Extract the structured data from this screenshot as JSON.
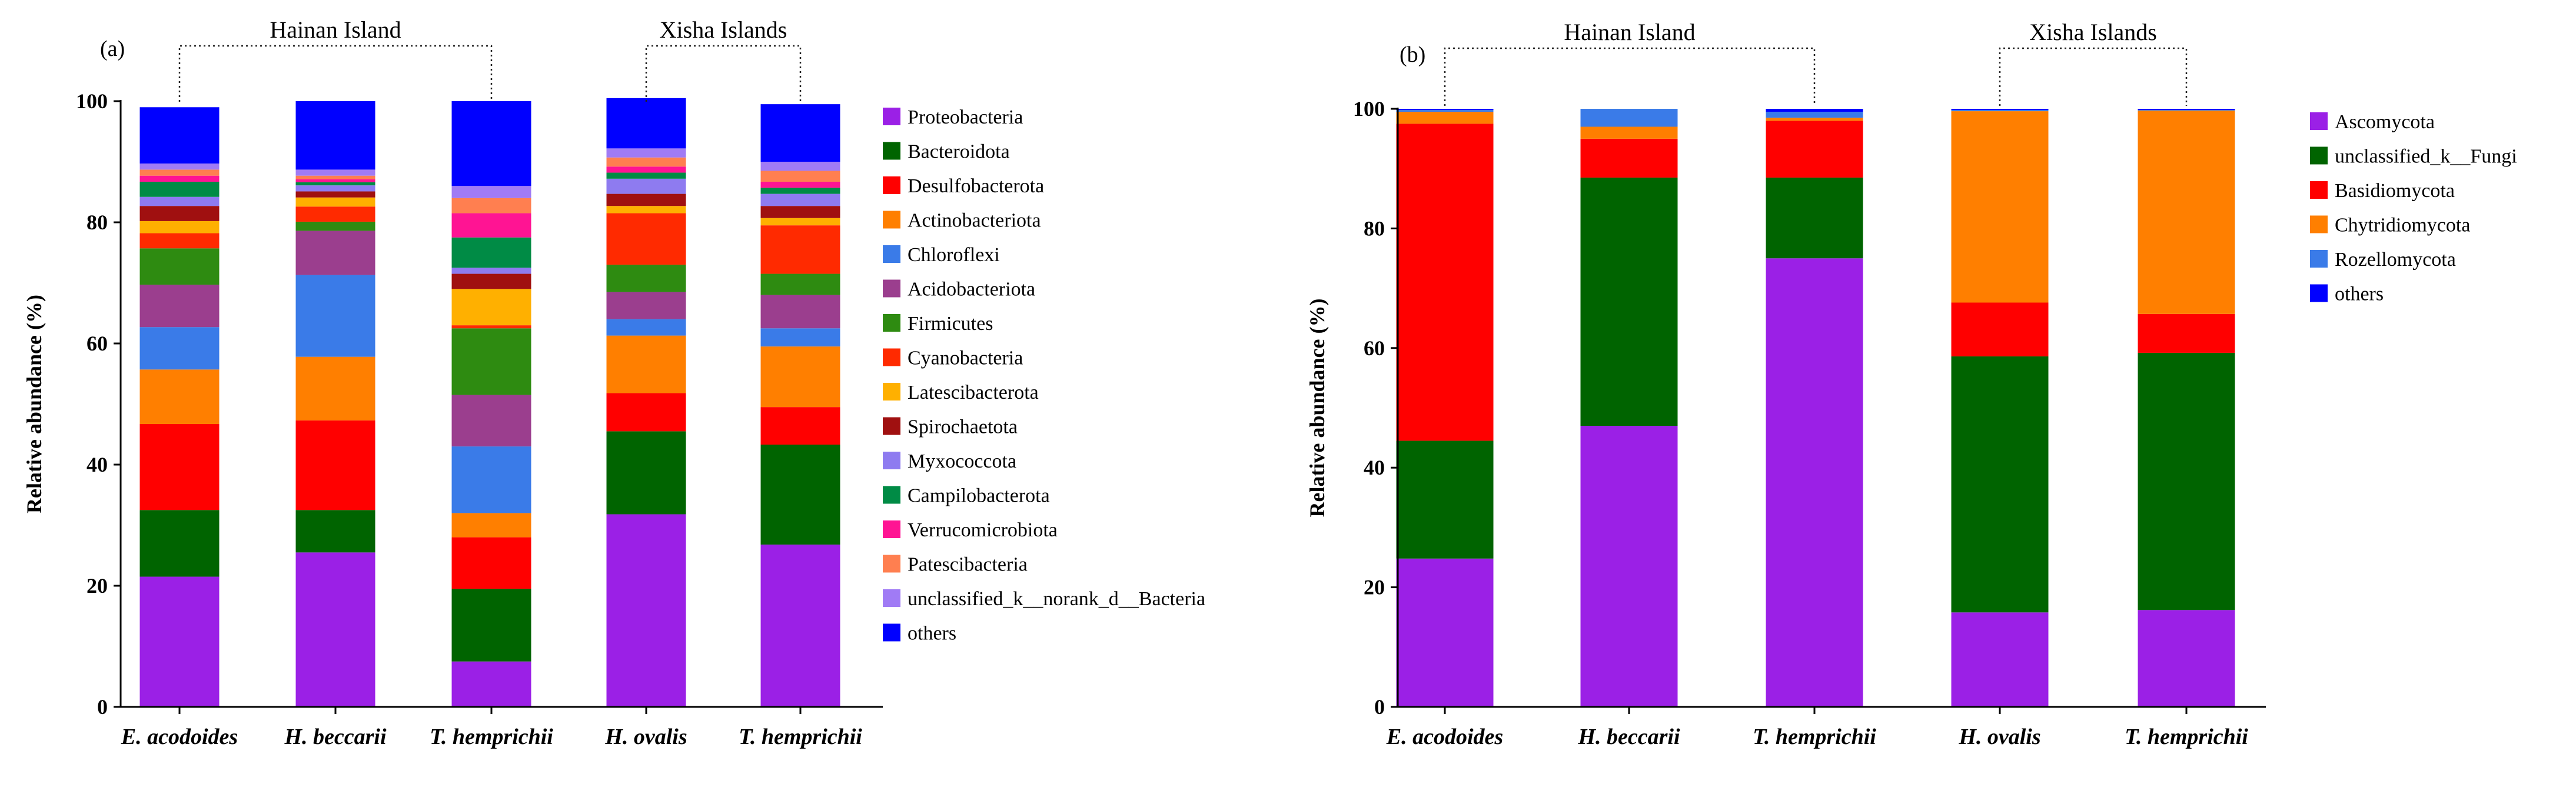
{
  "chart_data": [
    {
      "type": "bar",
      "stacked": true,
      "panel_label": "(a)",
      "ylabel": "Relative abundance (%)",
      "ylim": [
        0,
        100
      ],
      "yticks": [
        0,
        20,
        40,
        60,
        80,
        100
      ],
      "categories": [
        "E. acodoides",
        "H. beccarii",
        "T. hemprichii",
        "H. ovalis",
        "T. hemprichii"
      ],
      "groups": [
        {
          "label": "Hainan Island",
          "members": [
            0,
            2
          ]
        },
        {
          "label": "Xisha Islands",
          "members": [
            3,
            4
          ]
        }
      ],
      "series": [
        {
          "name": "Proteobacteria",
          "color": "#9B20E6",
          "values": [
            21.5,
            25.5,
            7.5,
            31.8,
            26.8
          ]
        },
        {
          "name": "Bacteroidota",
          "color": "#006400",
          "values": [
            11.0,
            7.0,
            12.0,
            13.7,
            16.5
          ]
        },
        {
          "name": "Desulfobacterota",
          "color": "#FF0000",
          "values": [
            14.2,
            14.8,
            8.5,
            6.3,
            6.2
          ]
        },
        {
          "name": "Actinobacteriota",
          "color": "#FF7F00",
          "values": [
            9.0,
            10.5,
            4.0,
            9.5,
            10.0
          ]
        },
        {
          "name": "Chloroflexi",
          "color": "#3A7BE8",
          "values": [
            7.0,
            13.5,
            11.0,
            2.7,
            3.0
          ]
        },
        {
          "name": "Acidobacteriota",
          "color": "#9B3E8E",
          "values": [
            7.0,
            7.3,
            8.5,
            4.5,
            5.5
          ]
        },
        {
          "name": "Firmicutes",
          "color": "#2E8B11",
          "values": [
            6.0,
            1.5,
            11.0,
            4.5,
            3.5
          ]
        },
        {
          "name": "Cyanobacteria",
          "color": "#FF2A00",
          "values": [
            2.5,
            2.5,
            0.5,
            8.5,
            8.0
          ]
        },
        {
          "name": "Latescibacterota",
          "color": "#FFB000",
          "values": [
            2.0,
            1.5,
            6.0,
            1.2,
            1.2
          ]
        },
        {
          "name": "Spirochaetota",
          "color": "#A01010",
          "values": [
            2.5,
            1.0,
            2.5,
            2.0,
            2.0
          ]
        },
        {
          "name": "Myxococcota",
          "color": "#8E7BF0",
          "values": [
            1.5,
            1.0,
            1.0,
            2.5,
            2.0
          ]
        },
        {
          "name": "Campilobacterota",
          "color": "#008B45",
          "values": [
            2.5,
            0.5,
            5.0,
            1.0,
            1.0
          ]
        },
        {
          "name": "Verrucomicrobiota",
          "color": "#FF1493",
          "values": [
            1.0,
            0.5,
            4.0,
            1.0,
            1.0
          ]
        },
        {
          "name": "Patescibacteria",
          "color": "#FF7F50",
          "values": [
            1.0,
            0.6,
            2.5,
            1.5,
            1.8
          ]
        },
        {
          "name": "unclassified_k__norank_d__Bacteria",
          "color": "#A07BF5",
          "values": [
            1.0,
            1.0,
            2.0,
            1.5,
            1.5
          ]
        },
        {
          "name": "others",
          "color": "#0000FF",
          "values": [
            9.3,
            11.3,
            14.0,
            8.3,
            9.5
          ]
        }
      ]
    },
    {
      "type": "bar",
      "stacked": true,
      "panel_label": "(b)",
      "ylabel": "Relative abundance (%)",
      "ylim": [
        0,
        100
      ],
      "yticks": [
        0,
        20,
        40,
        60,
        80,
        100
      ],
      "categories": [
        "E. acodoides",
        "H. beccarii",
        "T. hemprichii",
        "H. ovalis",
        "T. hemprichii"
      ],
      "groups": [
        {
          "label": "Hainan Island",
          "members": [
            0,
            2
          ]
        },
        {
          "label": "Xisha Islands",
          "members": [
            3,
            4
          ]
        }
      ],
      "series": [
        {
          "name": "Ascomycota",
          "color": "#9B20E6",
          "values": [
            24.8,
            47.0,
            75.0,
            15.8,
            16.2
          ]
        },
        {
          "name": "unclassified_k__Fungi",
          "color": "#006400",
          "values": [
            19.7,
            41.5,
            13.5,
            42.8,
            43.0
          ]
        },
        {
          "name": "Basidiomycota",
          "color": "#FF0000",
          "values": [
            53.0,
            6.5,
            9.5,
            9.0,
            6.5
          ]
        },
        {
          "name": "Chytridiomycota",
          "color": "#FF7F00",
          "values": [
            2.0,
            2.0,
            0.5,
            32.0,
            34.0
          ]
        },
        {
          "name": "Rozellomycota",
          "color": "#3A7BE8",
          "values": [
            0.3,
            3.0,
            1.0,
            0.2,
            0.1
          ]
        },
        {
          "name": "others",
          "color": "#0000FF",
          "values": [
            0.2,
            0.0,
            0.5,
            0.2,
            0.2
          ]
        }
      ]
    }
  ]
}
